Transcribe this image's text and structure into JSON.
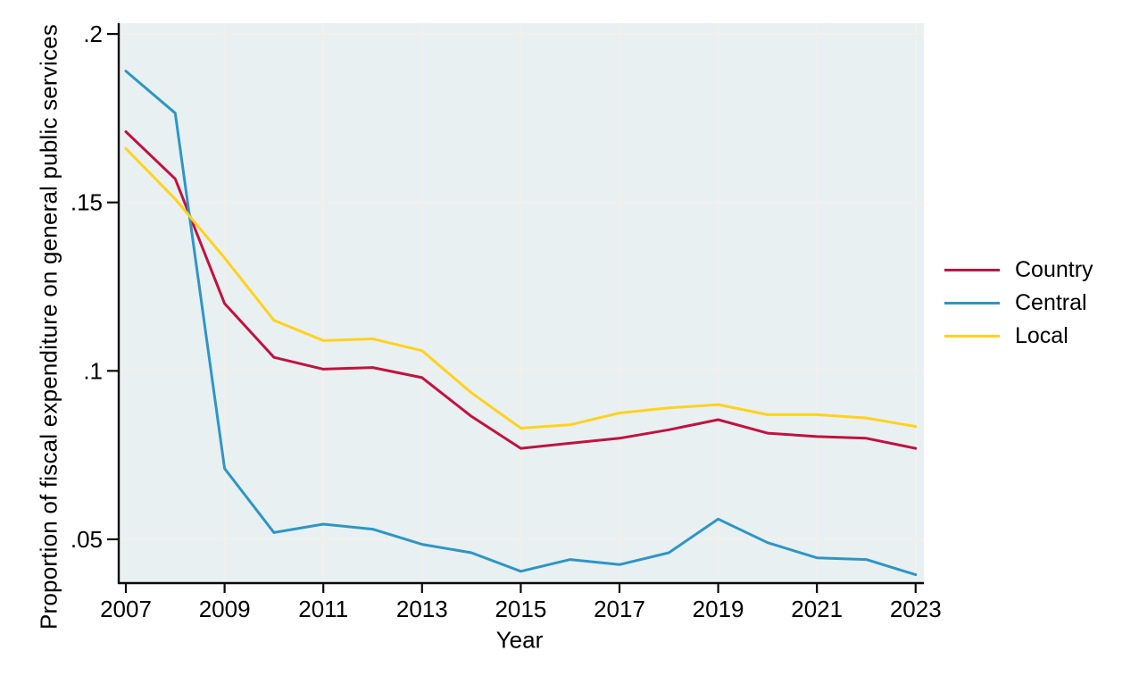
{
  "figure": {
    "background": "#ffffff",
    "plot_background": "#e9f0f2",
    "gridline_color": "#f4efe8",
    "axis_color": "#0a0a0a"
  },
  "chart_data": {
    "type": "line",
    "title": "",
    "xlabel": "Year",
    "ylabel": "Proportion of fiscal expenditure on general public services",
    "x": [
      2007,
      2008,
      2009,
      2010,
      2011,
      2012,
      2013,
      2014,
      2015,
      2016,
      2017,
      2018,
      2019,
      2020,
      2021,
      2022,
      2023
    ],
    "series": [
      {
        "name": "Country",
        "color": "#c21240",
        "values": [
          0.171,
          0.157,
          0.12,
          0.104,
          0.1005,
          0.101,
          0.098,
          0.0865,
          0.077,
          0.0785,
          0.08,
          0.0825,
          0.0855,
          0.0815,
          0.0805,
          0.08,
          0.077
        ]
      },
      {
        "name": "Central",
        "color": "#2d96c6",
        "values": [
          0.189,
          0.1765,
          0.071,
          0.052,
          0.0545,
          0.053,
          0.0485,
          0.046,
          0.0405,
          0.044,
          0.0425,
          0.046,
          0.056,
          0.049,
          0.0445,
          0.044,
          0.0395
        ]
      },
      {
        "name": "Local",
        "color": "#ffd21c",
        "values": [
          0.166,
          0.151,
          0.1335,
          0.115,
          0.109,
          0.1095,
          0.106,
          0.0935,
          0.083,
          0.084,
          0.0875,
          0.089,
          0.09,
          0.087,
          0.087,
          0.086,
          0.0835
        ]
      }
    ],
    "x_ticks": {
      "values": [
        2007,
        2009,
        2011,
        2013,
        2015,
        2017,
        2019,
        2021,
        2023
      ],
      "labels": [
        "2007",
        "2009",
        "2011",
        "2013",
        "2015",
        "2017",
        "2019",
        "2021",
        "2023"
      ]
    },
    "y_ticks": {
      "values": [
        0.05,
        0.1,
        0.15,
        0.2
      ],
      "labels": [
        ".05",
        ".1",
        ".15",
        ".2"
      ]
    },
    "x_range": [
      2006.855,
      2023.167
    ],
    "y_range": [
      0.037,
      0.2032
    ],
    "grid": true,
    "legend_position": "right"
  }
}
